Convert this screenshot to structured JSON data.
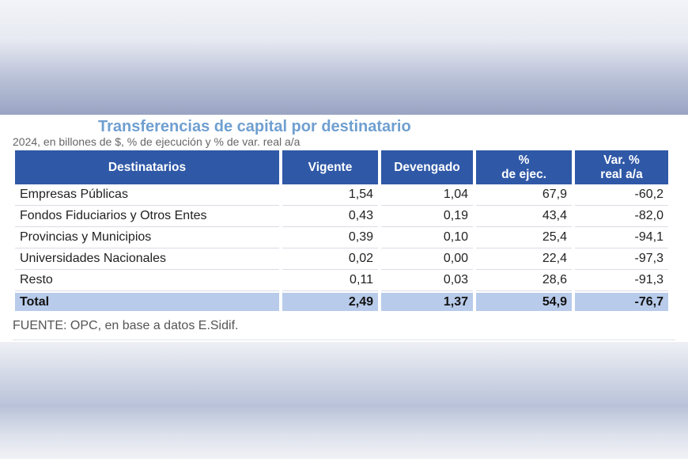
{
  "chart_data": {
    "type": "table",
    "title": "Transferencias de capital por destinatario",
    "subtitle": "2024, en billones de $, % de ejecución y % de var. real a/a",
    "columns": [
      {
        "line1": "Destinatarios",
        "line2": ""
      },
      {
        "line1": "Vigente",
        "line2": ""
      },
      {
        "line1": "Devengado",
        "line2": ""
      },
      {
        "line1": "%",
        "line2": "de ejec."
      },
      {
        "line1": "Var. %",
        "line2": "real a/a"
      }
    ],
    "rows": [
      {
        "label": "Empresas Públicas",
        "vigente": "1,54",
        "devengado": "1,04",
        "ejec": "67,9",
        "var": "-60,2"
      },
      {
        "label": "Fondos Fiduciarios y Otros Entes",
        "vigente": "0,43",
        "devengado": "0,19",
        "ejec": "43,4",
        "var": "-82,0"
      },
      {
        "label": "Provincias y Municipios",
        "vigente": "0,39",
        "devengado": "0,10",
        "ejec": "25,4",
        "var": "-94,1"
      },
      {
        "label": "Universidades Nacionales",
        "vigente": "0,02",
        "devengado": "0,00",
        "ejec": "22,4",
        "var": "-97,3"
      },
      {
        "label": "Resto",
        "vigente": "0,11",
        "devengado": "0,03",
        "ejec": "28,6",
        "var": "-91,3"
      }
    ],
    "total": {
      "label": "Total",
      "vigente": "2,49",
      "devengado": "1,37",
      "ejec": "54,9",
      "var": "-76,7"
    },
    "source": "FUENTE: OPC, en base a datos E.Sidif."
  },
  "colors": {
    "header_bg": "#2f58a7",
    "total_bg": "#b8cbea",
    "title": "#6f9fd0"
  }
}
